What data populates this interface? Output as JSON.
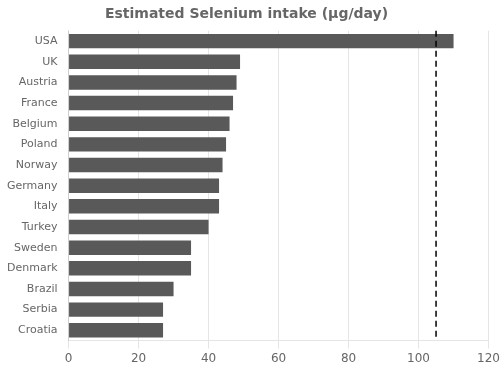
{
  "chart_data": {
    "type": "bar",
    "orientation": "horizontal",
    "title": "Estimated Selenium intake (µg/day)",
    "categories": [
      "USA",
      "UK",
      "Austria",
      "France",
      "Belgium",
      "Poland",
      "Norway",
      "Germany",
      "Italy",
      "Turkey",
      "Sweden",
      "Denmark",
      "Brazil",
      "Serbia",
      "Croatia"
    ],
    "values": [
      110,
      49,
      48,
      47,
      46,
      45,
      44,
      43,
      43,
      40,
      35,
      35,
      30,
      27,
      27
    ],
    "color": "#595959",
    "xlim": [
      0,
      120
    ],
    "xticks": [
      0,
      20,
      40,
      60,
      80,
      100,
      120
    ],
    "grid": "x",
    "reference_lines": [
      {
        "value": 105,
        "color": "#000000",
        "line_style": "dashed"
      }
    ]
  }
}
